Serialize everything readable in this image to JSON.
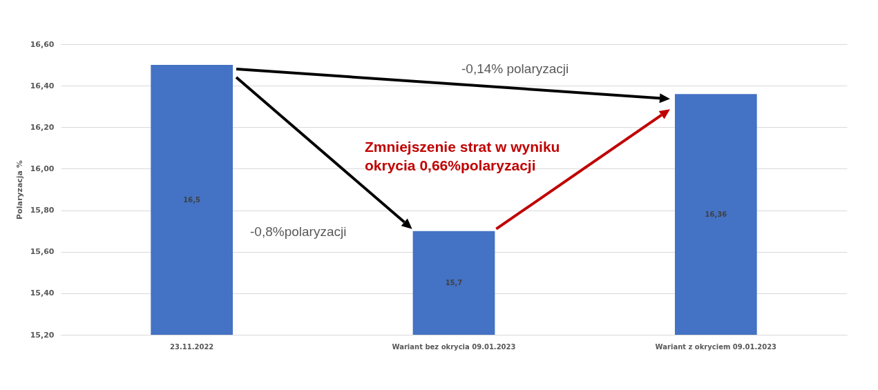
{
  "chart_data": {
    "type": "bar",
    "ylabel": "Polaryzacja %",
    "categories": [
      "23.11.2022",
      "Wariant bez okrycia 09.01.2023",
      "Wariant z okryciem 09.01.2023"
    ],
    "values": [
      16.5,
      15.7,
      16.36
    ],
    "value_labels": [
      "16,5",
      "15,7",
      "16,36"
    ],
    "color": "#4472c4",
    "ylim": [
      15.2,
      16.6
    ],
    "yticks": [
      {
        "value": 15.2,
        "label": "15,20"
      },
      {
        "value": 15.4,
        "label": "15,40"
      },
      {
        "value": 15.6,
        "label": "15,60"
      },
      {
        "value": 15.8,
        "label": "15,80"
      },
      {
        "value": 16.0,
        "label": "16,00"
      },
      {
        "value": 16.2,
        "label": "16,20"
      },
      {
        "value": 16.4,
        "label": "16,40"
      },
      {
        "value": 16.6,
        "label": "16,60"
      }
    ],
    "grid": "y",
    "annotations": [
      "-0,14% polaryzacji",
      "Zmniejszenie strat w wyniku okrycia 0,66%polaryzacji",
      "-0,8%polaryzacji"
    ]
  }
}
